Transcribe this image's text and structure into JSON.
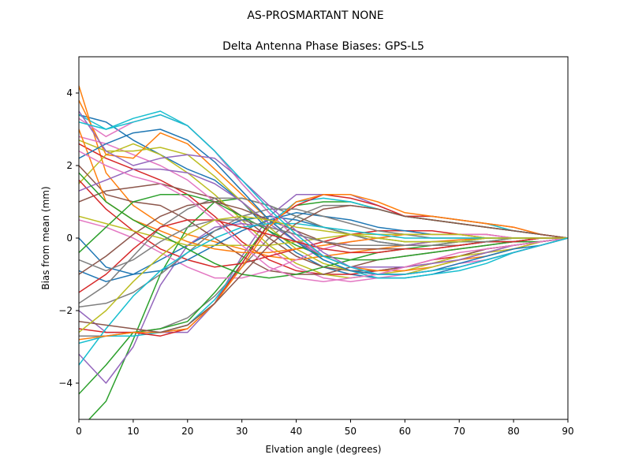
{
  "chart_data": {
    "type": "line",
    "suptitle": "AS-PROSMARTANT  NONE",
    "title": "Delta Antenna Phase Biases: GPS-L5",
    "xlabel": "Elvation angle (degrees)",
    "ylabel": "Bias from mean (mm)",
    "xlim": [
      0,
      90
    ],
    "ylim": [
      -5,
      5
    ],
    "x": [
      0,
      5,
      10,
      15,
      20,
      25,
      30,
      35,
      40,
      45,
      50,
      55,
      60,
      65,
      70,
      75,
      80,
      85,
      90
    ],
    "xticks": [
      "0",
      "10",
      "20",
      "30",
      "40",
      "50",
      "60",
      "70",
      "80",
      "90"
    ],
    "yticks": [
      "−4",
      "−2",
      "0",
      "2",
      "4"
    ],
    "grid": false,
    "palette": [
      "#1f77b4",
      "#ff7f0e",
      "#2ca02c",
      "#d62728",
      "#9467bd",
      "#8c564b",
      "#e377c2",
      "#7f7f7f",
      "#bcbd22",
      "#17becf"
    ],
    "series": [
      {
        "values": [
          3.4,
          3.2,
          2.7,
          2.3,
          1.9,
          1.6,
          1.0,
          0.2,
          -0.4,
          -0.8,
          -1.0,
          -1.1,
          -1.1,
          -1.0,
          -0.8,
          -0.6,
          -0.4,
          -0.2,
          0
        ]
      },
      {
        "values": [
          4.2,
          1.8,
          0.9,
          0.4,
          0.1,
          -0.1,
          -0.3,
          -0.5,
          -0.6,
          -0.5,
          -0.4,
          -0.3,
          -0.2,
          -0.1,
          -0.05,
          0,
          0,
          0,
          0
        ]
      },
      {
        "values": [
          -5.3,
          -4.5,
          -2.8,
          -1.0,
          0.3,
          1.0,
          1.1,
          0.9,
          0.6,
          0.3,
          0.1,
          0.0,
          -0.1,
          -0.1,
          -0.1,
          0,
          0,
          0,
          0
        ]
      },
      {
        "values": [
          2.6,
          2.2,
          1.9,
          1.6,
          1.2,
          0.6,
          -0.1,
          -0.6,
          -0.9,
          -1.0,
          -1.0,
          -0.9,
          -0.8,
          -0.6,
          -0.5,
          -0.3,
          -0.2,
          -0.1,
          0
        ]
      },
      {
        "values": [
          -2.0,
          -2.6,
          -2.6,
          -2.6,
          -2.6,
          -1.8,
          -0.5,
          0.6,
          1.2,
          1.2,
          1.2,
          0.9,
          0.6,
          0.5,
          0.4,
          0.3,
          0.2,
          0.1,
          0
        ]
      },
      {
        "values": [
          1.0,
          1.3,
          1.4,
          1.5,
          1.3,
          1.1,
          0.6,
          0.0,
          -0.5,
          -0.8,
          -0.9,
          -0.9,
          -0.8,
          -0.7,
          -0.5,
          -0.3,
          -0.2,
          -0.1,
          0
        ]
      },
      {
        "values": [
          2.8,
          2.6,
          2.3,
          2.0,
          1.6,
          1.0,
          0.4,
          -0.3,
          -0.8,
          -1.1,
          -1.2,
          -1.1,
          -1.0,
          -0.8,
          -0.6,
          -0.4,
          -0.3,
          -0.1,
          0
        ]
      },
      {
        "values": [
          -2.7,
          -2.7,
          -2.6,
          -2.5,
          -2.2,
          -1.6,
          -0.8,
          0.0,
          0.6,
          0.9,
          0.9,
          0.8,
          0.6,
          0.5,
          0.4,
          0.3,
          0.2,
          0.1,
          0
        ]
      },
      {
        "values": [
          1.5,
          2.3,
          2.6,
          2.3,
          1.8,
          1.2,
          0.5,
          -0.2,
          -0.7,
          -1.0,
          -1.1,
          -1.0,
          -0.9,
          -0.7,
          -0.5,
          -0.4,
          -0.2,
          -0.1,
          0
        ]
      },
      {
        "values": [
          3.4,
          3.0,
          3.3,
          3.5,
          3.1,
          2.4,
          1.5,
          0.7,
          0.0,
          -0.6,
          -0.9,
          -1.1,
          -1.1,
          -1.0,
          -0.9,
          -0.7,
          -0.4,
          -0.2,
          0
        ]
      },
      {
        "values": [
          -0.9,
          -1.2,
          -1.0,
          -0.6,
          -0.2,
          0.2,
          0.5,
          0.6,
          0.5,
          0.3,
          0.1,
          -0.1,
          -0.2,
          -0.2,
          -0.2,
          -0.1,
          -0.1,
          0,
          0
        ]
      },
      {
        "values": [
          3.8,
          2.3,
          2.2,
          2.9,
          2.6,
          1.9,
          1.2,
          0.5,
          -0.1,
          -0.5,
          -0.8,
          -0.9,
          -0.9,
          -0.8,
          -0.6,
          -0.5,
          -0.3,
          -0.1,
          0
        ]
      },
      {
        "values": [
          -4.3,
          -3.5,
          -2.6,
          -2.5,
          -2.3,
          -1.5,
          -0.6,
          0.4,
          0.9,
          1.0,
          1.0,
          0.8,
          0.6,
          0.5,
          0.4,
          0.3,
          0.2,
          0.1,
          0
        ]
      },
      {
        "values": [
          1.6,
          0.8,
          0.2,
          -0.3,
          -0.6,
          -0.8,
          -0.7,
          -0.5,
          -0.3,
          -0.1,
          0.1,
          0.2,
          0.2,
          0.2,
          0.1,
          0.1,
          0,
          0,
          0
        ]
      },
      {
        "values": [
          -3.2,
          -4.0,
          -3.0,
          -1.3,
          -0.2,
          0.3,
          0.4,
          0.3,
          0.1,
          -0.1,
          -0.2,
          -0.2,
          -0.2,
          -0.1,
          -0.1,
          0,
          0,
          0,
          0
        ]
      },
      {
        "values": [
          2.0,
          1.2,
          1.0,
          0.9,
          0.5,
          0.0,
          -0.5,
          -0.9,
          -1.0,
          -1.0,
          -0.8,
          -0.6,
          -0.5,
          -0.4,
          -0.3,
          -0.2,
          -0.1,
          -0.1,
          0
        ]
      },
      {
        "values": [
          0.5,
          0.3,
          0.0,
          -0.4,
          -0.8,
          -1.1,
          -1.1,
          -0.9,
          -0.6,
          -0.3,
          -0.1,
          0.0,
          0.1,
          0.1,
          0.1,
          0.1,
          0,
          0,
          0
        ]
      },
      {
        "values": [
          -1.8,
          -1.3,
          -0.5,
          0.3,
          0.8,
          1.1,
          1.1,
          0.9,
          0.6,
          0.3,
          0.1,
          -0.1,
          -0.2,
          -0.2,
          -0.2,
          -0.1,
          -0.1,
          0,
          0
        ]
      },
      {
        "values": [
          2.7,
          2.4,
          2.4,
          2.5,
          2.3,
          1.7,
          1.0,
          0.3,
          -0.3,
          -0.7,
          -0.9,
          -1.0,
          -1.0,
          -0.8,
          -0.6,
          -0.4,
          -0.3,
          -0.1,
          0
        ]
      },
      {
        "values": [
          -2.9,
          -2.7,
          -2.7,
          -2.6,
          -2.4,
          -1.7,
          -0.7,
          0.4,
          1.0,
          1.1,
          1.0,
          0.8,
          0.6,
          0.6,
          0.5,
          0.4,
          0.2,
          0.1,
          0
        ]
      },
      {
        "values": [
          0.0,
          -0.8,
          -1.0,
          -0.9,
          -0.6,
          -0.2,
          0.2,
          0.5,
          0.7,
          0.6,
          0.5,
          0.3,
          0.2,
          0.1,
          0.1,
          0,
          0,
          0,
          0
        ]
      },
      {
        "values": [
          3.0,
          1.0,
          0.5,
          0.2,
          -0.1,
          -0.3,
          -0.4,
          -0.4,
          -0.3,
          -0.2,
          -0.1,
          0.0,
          0.1,
          0.1,
          0.1,
          0,
          0,
          0,
          0
        ]
      },
      {
        "values": [
          -0.4,
          0.3,
          1.0,
          1.2,
          1.2,
          1.0,
          0.6,
          0.2,
          -0.2,
          -0.5,
          -0.6,
          -0.6,
          -0.5,
          -0.4,
          -0.3,
          -0.2,
          -0.1,
          -0.1,
          0
        ]
      },
      {
        "values": [
          -2.5,
          -2.6,
          -2.6,
          -2.7,
          -2.5,
          -1.8,
          -0.7,
          0.4,
          0.9,
          1.2,
          1.1,
          0.9,
          0.6,
          0.6,
          0.5,
          0.4,
          0.3,
          0.1,
          0
        ]
      },
      {
        "values": [
          1.3,
          1.6,
          1.9,
          1.9,
          1.8,
          1.5,
          1.0,
          0.4,
          -0.1,
          -0.5,
          -0.8,
          -0.8,
          -0.8,
          -0.7,
          -0.6,
          -0.4,
          -0.2,
          -0.1,
          0
        ]
      },
      {
        "values": [
          -1.0,
          -0.5,
          0.1,
          0.6,
          0.9,
          1.0,
          0.8,
          0.5,
          0.2,
          -0.1,
          -0.3,
          -0.3,
          -0.3,
          -0.3,
          -0.2,
          -0.1,
          -0.1,
          0,
          0
        ]
      },
      {
        "values": [
          3.3,
          2.8,
          3.2,
          3.4,
          3.1,
          2.4,
          1.5,
          0.7,
          0.0,
          -0.5,
          -0.8,
          -1.0,
          -1.0,
          -0.9,
          -0.7,
          -0.6,
          -0.4,
          -0.2,
          0
        ]
      },
      {
        "values": [
          -1.9,
          -1.8,
          -1.5,
          -1.0,
          -0.4,
          0.2,
          0.6,
          0.8,
          0.8,
          0.6,
          0.4,
          0.2,
          0.1,
          0.0,
          0.0,
          0,
          0,
          0,
          0
        ]
      },
      {
        "values": [
          0.6,
          0.4,
          0.2,
          0.0,
          -0.2,
          -0.2,
          -0.2,
          -0.2,
          -0.1,
          0.0,
          0.1,
          0.1,
          0.1,
          0.1,
          0.1,
          0,
          0,
          0,
          0
        ]
      },
      {
        "values": [
          -3.5,
          -2.5,
          -1.6,
          -0.9,
          -0.4,
          0.0,
          0.3,
          0.4,
          0.4,
          0.3,
          0.2,
          0.1,
          0.0,
          0.0,
          0.0,
          0,
          0,
          0,
          0
        ]
      },
      {
        "values": [
          2.2,
          2.6,
          2.9,
          3.0,
          2.7,
          2.1,
          1.3,
          0.5,
          -0.1,
          -0.6,
          -0.9,
          -1.0,
          -1.0,
          -0.9,
          -0.7,
          -0.5,
          -0.3,
          -0.2,
          0
        ]
      },
      {
        "values": [
          -2.8,
          -2.7,
          -2.6,
          -2.6,
          -2.5,
          -1.8,
          -0.8,
          0.3,
          1.0,
          1.2,
          1.2,
          1.0,
          0.7,
          0.6,
          0.5,
          0.4,
          0.3,
          0.1,
          0
        ]
      },
      {
        "values": [
          1.8,
          1.0,
          0.5,
          0.1,
          -0.3,
          -0.7,
          -1.0,
          -1.1,
          -1.0,
          -0.8,
          -0.6,
          -0.4,
          -0.3,
          -0.2,
          -0.1,
          -0.1,
          0,
          0,
          0
        ]
      },
      {
        "values": [
          -1.5,
          -1.0,
          -0.3,
          0.3,
          0.5,
          0.5,
          0.3,
          0.1,
          -0.1,
          -0.3,
          -0.4,
          -0.4,
          -0.3,
          -0.3,
          -0.2,
          -0.1,
          -0.1,
          0,
          0
        ]
      },
      {
        "values": [
          3.5,
          2.4,
          2.0,
          2.2,
          2.3,
          2.2,
          1.6,
          0.9,
          0.2,
          -0.4,
          -0.8,
          -1.0,
          -1.0,
          -0.9,
          -0.8,
          -0.6,
          -0.4,
          -0.2,
          0
        ]
      },
      {
        "values": [
          -2.3,
          -2.4,
          -2.5,
          -2.6,
          -2.4,
          -1.8,
          -1.0,
          -0.2,
          0.4,
          0.8,
          0.9,
          0.8,
          0.6,
          0.5,
          0.4,
          0.3,
          0.2,
          0.1,
          0
        ]
      },
      {
        "values": [
          2.4,
          2.0,
          1.7,
          1.5,
          1.1,
          0.5,
          -0.2,
          -0.8,
          -1.1,
          -1.2,
          -1.1,
          -1.0,
          -0.8,
          -0.6,
          -0.4,
          -0.3,
          -0.2,
          -0.1,
          0
        ]
      },
      {
        "values": [
          -0.6,
          -0.9,
          -0.6,
          -0.1,
          0.3,
          0.5,
          0.5,
          0.3,
          0.1,
          -0.1,
          -0.2,
          -0.2,
          -0.2,
          -0.2,
          -0.1,
          -0.1,
          0,
          0,
          0
        ]
      },
      {
        "values": [
          -2.6,
          -2.0,
          -1.2,
          -0.5,
          0.1,
          0.5,
          0.6,
          0.5,
          0.3,
          0.2,
          0.1,
          0.0,
          -0.1,
          -0.1,
          -0.1,
          0,
          0,
          0,
          0
        ]
      },
      {
        "values": [
          3.2,
          3.0,
          3.2,
          3.4,
          3.1,
          2.4,
          1.6,
          0.8,
          0.1,
          -0.5,
          -0.8,
          -1.0,
          -1.0,
          -0.9,
          -0.8,
          -0.6,
          -0.4,
          -0.2,
          0
        ]
      }
    ]
  }
}
